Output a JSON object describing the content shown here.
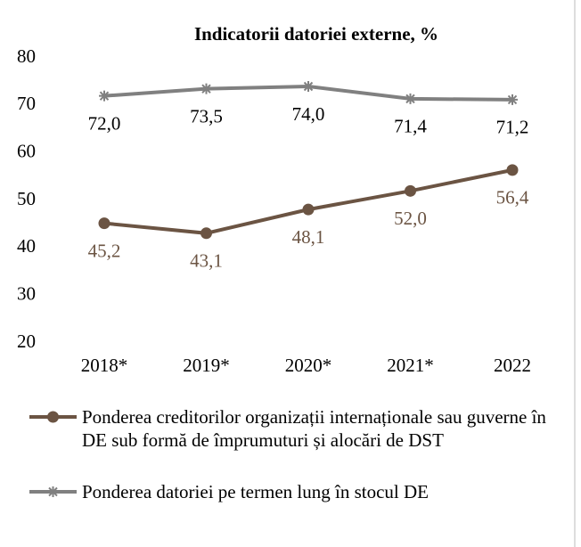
{
  "chart_data": {
    "type": "line",
    "title": "Indicatorii datoriei externe, %",
    "categories": [
      "2018*",
      "2019*",
      "2020*",
      "2021*",
      "2022"
    ],
    "series": [
      {
        "name": "Ponderea creditorilor organizații internaționale sau guverne în DE sub formă de împrumuturi și alocări de DST",
        "color": "#6b5443",
        "marker": "circle",
        "values": [
          45.2,
          43.1,
          48.1,
          52.0,
          56.4
        ],
        "value_labels": [
          "45,2",
          "43,1",
          "48,1",
          "52,0",
          "56,4"
        ]
      },
      {
        "name": "Ponderea datoriei pe termen lung în stocul DE",
        "color": "#808080",
        "marker": "asterisk",
        "values": [
          72.0,
          73.5,
          74.0,
          71.4,
          71.2
        ],
        "value_labels": [
          "72,0",
          "73,5",
          "74,0",
          "71,4",
          "71,2"
        ]
      }
    ],
    "ylim": [
      20,
      80
    ],
    "yticks": [
      20,
      30,
      40,
      50,
      60,
      70,
      80
    ],
    "grid": false
  }
}
